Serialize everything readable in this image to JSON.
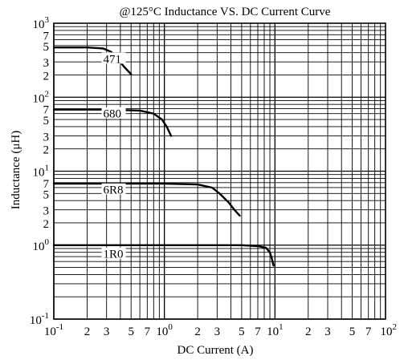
{
  "chart_data": {
    "type": "line",
    "title": "@125°C Inductance VS. DC Current Curve",
    "xlabel": "DC Current (A)",
    "ylabel": "Inductance (μH)",
    "x_scale": "log",
    "y_scale": "log",
    "xlim": [
      0.1,
      100
    ],
    "ylim": [
      0.1,
      1000
    ],
    "grid": true,
    "x_ticks": [
      {
        "v": 0.1,
        "base": "10",
        "exp": "-1"
      },
      {
        "v": 0.2,
        "base": "2"
      },
      {
        "v": 0.3,
        "base": "3"
      },
      {
        "v": 0.5,
        "base": "5"
      },
      {
        "v": 0.7,
        "base": "7"
      },
      {
        "v": 1,
        "base": "10",
        "exp": "0"
      },
      {
        "v": 2,
        "base": "2"
      },
      {
        "v": 3,
        "base": "3"
      },
      {
        "v": 5,
        "base": "5"
      },
      {
        "v": 7,
        "base": "7"
      },
      {
        "v": 10,
        "base": "10",
        "exp": "1"
      },
      {
        "v": 20,
        "base": "2"
      },
      {
        "v": 30,
        "base": "3"
      },
      {
        "v": 50,
        "base": "5"
      },
      {
        "v": 70,
        "base": "7"
      },
      {
        "v": 100,
        "base": "10",
        "exp": "2"
      }
    ],
    "y_ticks": [
      {
        "v": 0.1,
        "base": "10",
        "exp": "-1"
      },
      {
        "v": 1,
        "base": "10",
        "exp": "0"
      },
      {
        "v": 2,
        "base": "2"
      },
      {
        "v": 3,
        "base": "3"
      },
      {
        "v": 5,
        "base": "5"
      },
      {
        "v": 7,
        "base": "7"
      },
      {
        "v": 10,
        "base": "10",
        "exp": "1"
      },
      {
        "v": 20,
        "base": "2"
      },
      {
        "v": 30,
        "base": "3"
      },
      {
        "v": 50,
        "base": "5"
      },
      {
        "v": 70,
        "base": "7"
      },
      {
        "v": 100,
        "base": "10",
        "exp": "2"
      },
      {
        "v": 200,
        "base": "2"
      },
      {
        "v": 300,
        "base": "3"
      },
      {
        "v": 500,
        "base": "5"
      },
      {
        "v": 700,
        "base": "7"
      },
      {
        "v": 1000,
        "base": "10",
        "exp": "3"
      }
    ],
    "series": [
      {
        "name": "471",
        "label_at": [
          0.28,
          330
        ],
        "points": [
          [
            0.1,
            470
          ],
          [
            0.2,
            470
          ],
          [
            0.28,
            455
          ],
          [
            0.33,
            410
          ],
          [
            0.38,
            330
          ],
          [
            0.43,
            260
          ],
          [
            0.5,
            205
          ]
        ]
      },
      {
        "name": "680",
        "label_at": [
          0.28,
          60
        ],
        "points": [
          [
            0.1,
            68
          ],
          [
            0.3,
            68
          ],
          [
            0.6,
            66
          ],
          [
            0.8,
            60
          ],
          [
            0.95,
            50
          ],
          [
            1.05,
            40
          ],
          [
            1.15,
            30
          ]
        ]
      },
      {
        "name": "6R8",
        "label_at": [
          0.28,
          5.6
        ],
        "points": [
          [
            0.1,
            6.8
          ],
          [
            1,
            6.8
          ],
          [
            2,
            6.6
          ],
          [
            2.7,
            6
          ],
          [
            3.2,
            4.9
          ],
          [
            3.8,
            3.8
          ],
          [
            4.3,
            3.0
          ],
          [
            4.8,
            2.5
          ]
        ]
      },
      {
        "name": "1R0",
        "label_at": [
          0.28,
          0.76
        ],
        "points": [
          [
            0.1,
            1.0
          ],
          [
            1,
            1.0
          ],
          [
            5,
            1.0
          ],
          [
            7,
            0.97
          ],
          [
            8.3,
            0.92
          ],
          [
            9,
            0.8
          ],
          [
            9.4,
            0.65
          ],
          [
            9.7,
            0.53
          ]
        ]
      }
    ]
  }
}
